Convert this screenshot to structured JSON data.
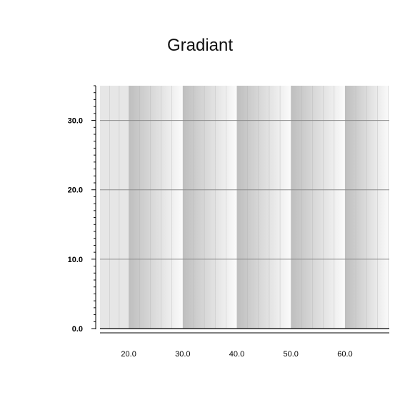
{
  "chart_data": {
    "type": "area",
    "title": "Gradiant",
    "xlabel": "",
    "ylabel": "",
    "x_ticks": [
      20.0,
      30.0,
      40.0,
      50.0,
      60.0
    ],
    "x_tick_labels": [
      "20.0",
      "30.0",
      "40.0",
      "50.0",
      "60.0"
    ],
    "y_ticks": [
      0.0,
      10.0,
      20.0,
      30.0
    ],
    "y_tick_labels": [
      "0.0",
      "10.0",
      "20.0",
      "30.0"
    ],
    "xlim": [
      14.7,
      68.2
    ],
    "ylim": [
      0,
      35
    ],
    "grid": "horizontal",
    "gradient_bands": [
      {
        "start": 20.0,
        "end": 30.0
      },
      {
        "start": 30.0,
        "end": 40.0
      },
      {
        "start": 40.0,
        "end": 50.0
      },
      {
        "start": 50.0,
        "end": 60.0
      },
      {
        "start": 60.0,
        "end": 70.0
      }
    ],
    "colors": {
      "band_dark": "#bebebe",
      "band_light": "#fbfbfb",
      "lead_strip": "#e6e6e6",
      "gridline": "#8c8c8c",
      "axis": "#000000",
      "minor_line": "#b4b4b4"
    }
  }
}
